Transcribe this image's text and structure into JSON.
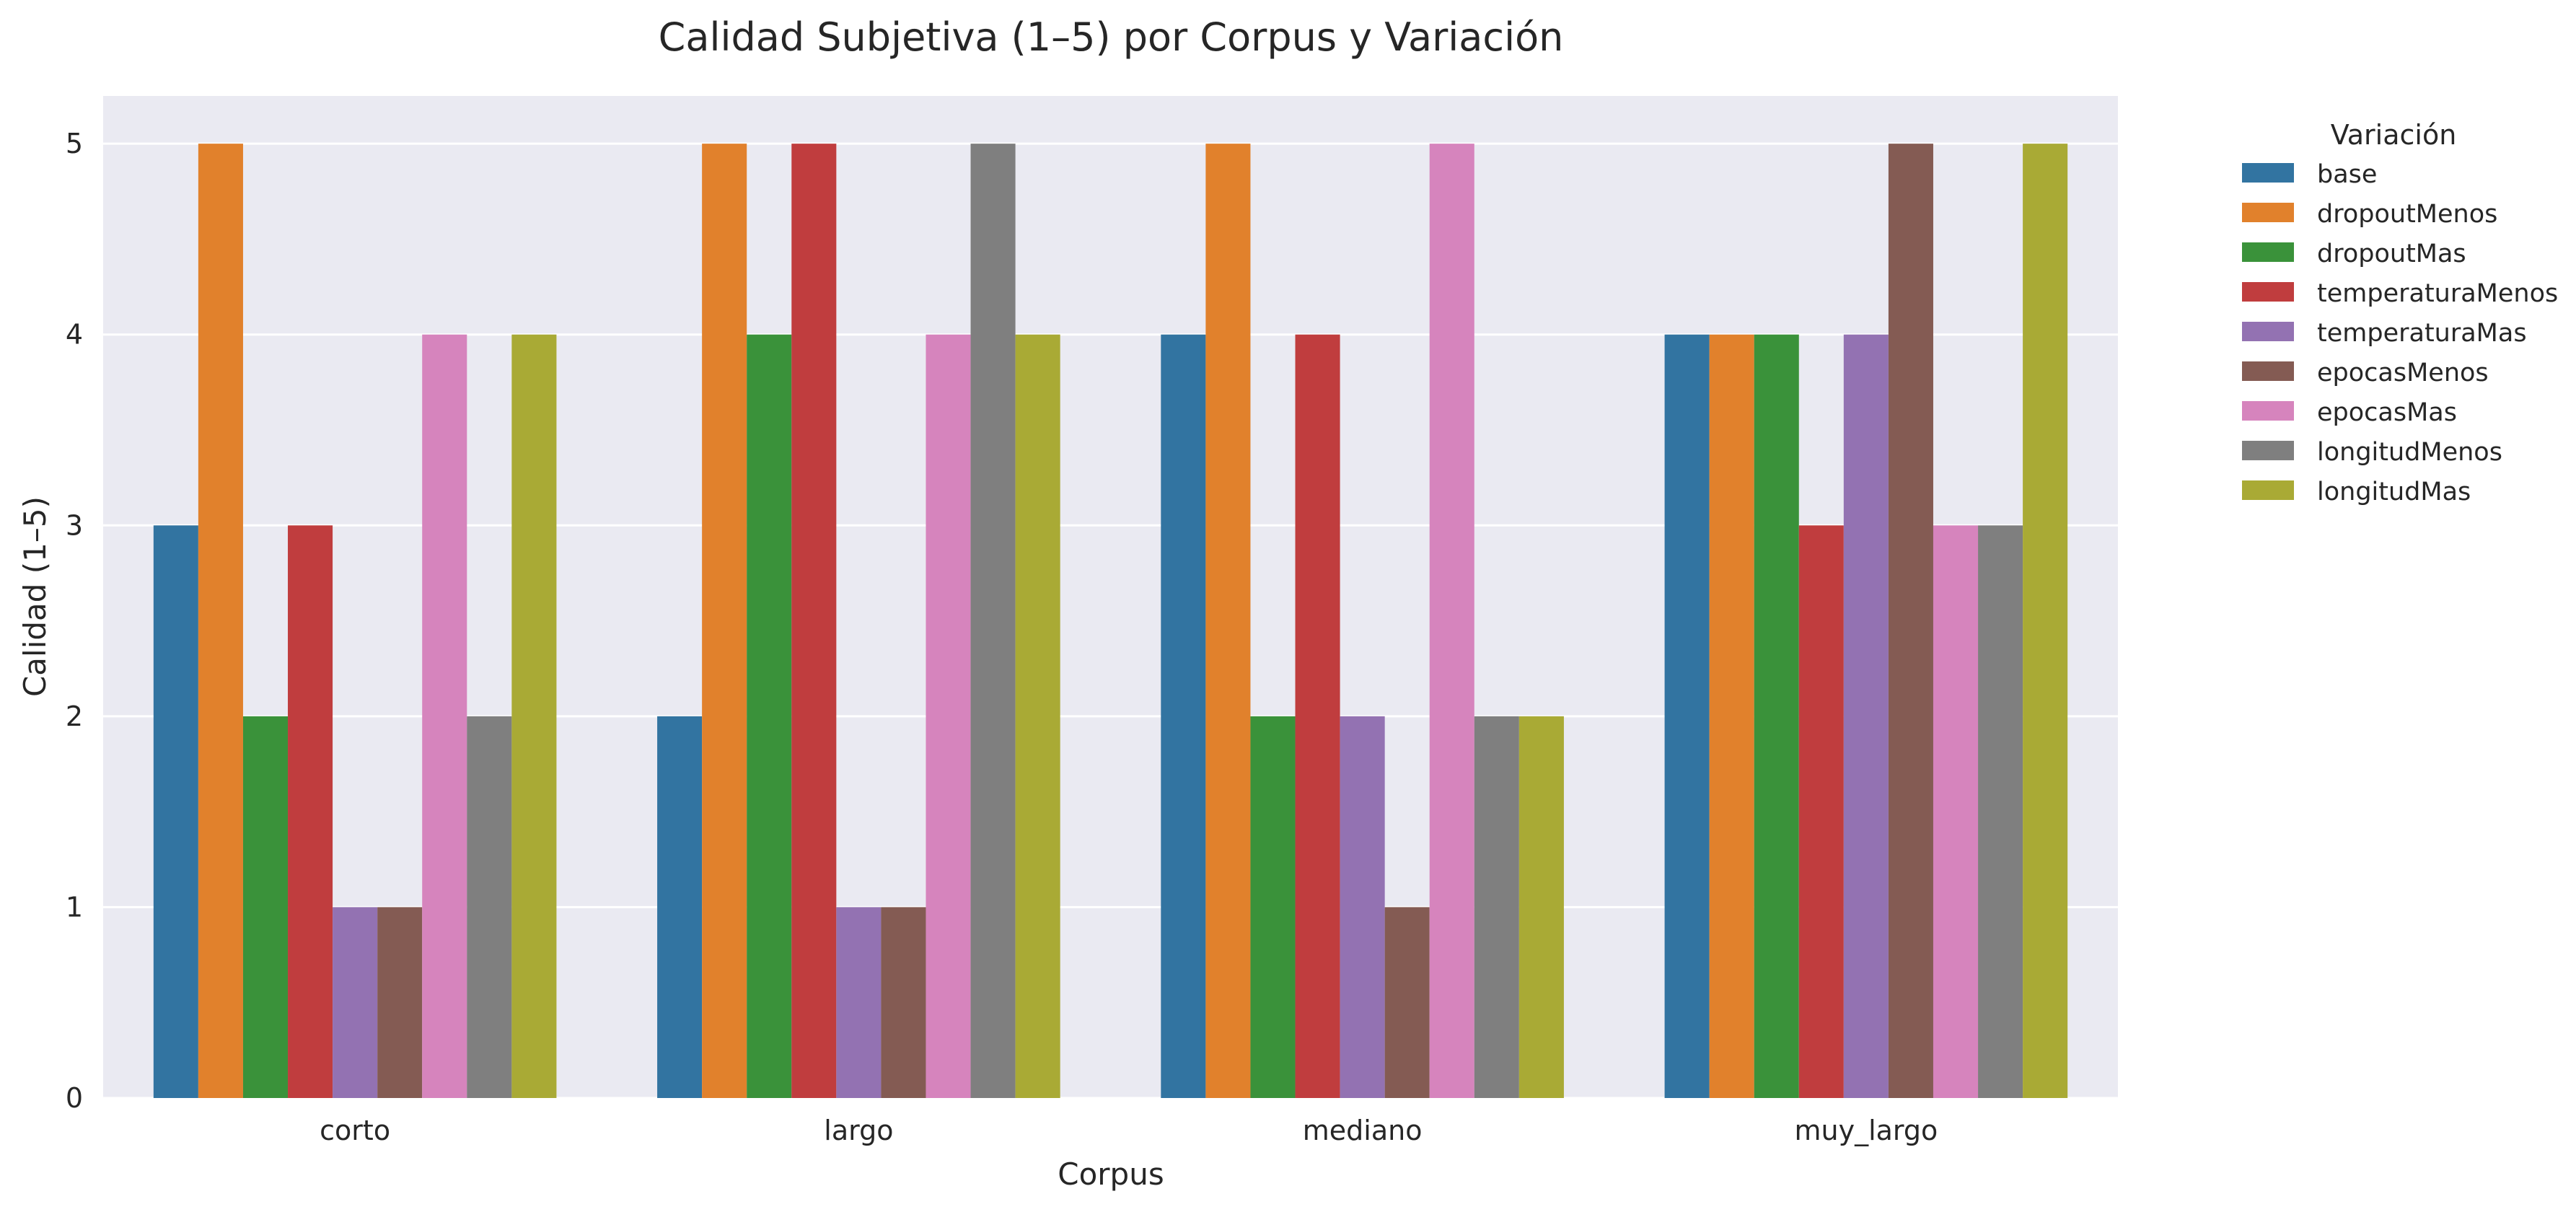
{
  "chart_data": {
    "type": "bar",
    "title": "Calidad Subjetiva (1–5) por Corpus y Variación",
    "xlabel": "Corpus",
    "ylabel": "Calidad (1–5)",
    "ylim": [
      0,
      5.25
    ],
    "yticks": [
      "0",
      "1",
      "2",
      "3",
      "4",
      "5"
    ],
    "grid": true,
    "legend": {
      "title": "Variación",
      "placement": "outside-right"
    },
    "categories": [
      "corto",
      "largo",
      "mediano",
      "muy_largo"
    ],
    "series": [
      {
        "name": "base",
        "color": "#3274a1",
        "values": [
          3,
          2,
          4,
          4
        ]
      },
      {
        "name": "dropoutMenos",
        "color": "#e1812c",
        "values": [
          5,
          5,
          5,
          4
        ]
      },
      {
        "name": "dropoutMas",
        "color": "#3a923a",
        "values": [
          2,
          4,
          2,
          4
        ]
      },
      {
        "name": "temperaturaMenos",
        "color": "#c03d3e",
        "values": [
          3,
          5,
          4,
          3
        ]
      },
      {
        "name": "temperaturaMas",
        "color": "#9372b2",
        "values": [
          1,
          1,
          2,
          4
        ]
      },
      {
        "name": "epocasMenos",
        "color": "#845b53",
        "values": [
          1,
          1,
          1,
          5
        ]
      },
      {
        "name": "epocasMas",
        "color": "#d684bd",
        "values": [
          4,
          4,
          5,
          3
        ]
      },
      {
        "name": "longitudMenos",
        "color": "#7f7f7f",
        "values": [
          2,
          5,
          2,
          3
        ]
      },
      {
        "name": "longitudMas",
        "color": "#a9aa35",
        "values": [
          4,
          4,
          2,
          5
        ]
      }
    ]
  }
}
